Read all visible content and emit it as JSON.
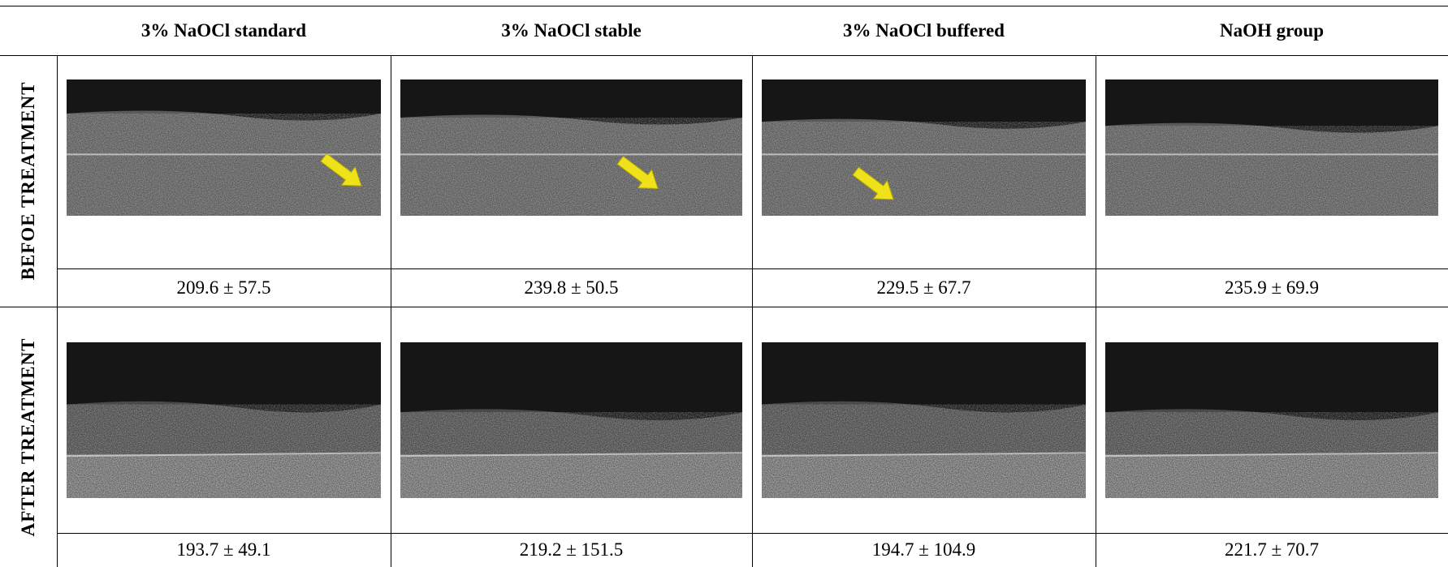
{
  "table": {
    "columns": [
      "3% NaOCl standard",
      "3% NaOCl stable",
      "3% NaOCl buffered",
      "NaOH group"
    ],
    "rows": [
      {
        "label": "BEFOE TREATMENT",
        "values": [
          "209.6 ± 57.5",
          "239.8 ± 50.5",
          "229.5 ± 67.7",
          "235.9 ± 69.9"
        ]
      },
      {
        "label": "AFTER TREATMENT",
        "values": [
          "193.7 ± 49.1",
          "219.2 ± 151.5",
          "194.7 ± 104.9",
          "221.7 ± 70.7"
        ]
      }
    ]
  }
}
